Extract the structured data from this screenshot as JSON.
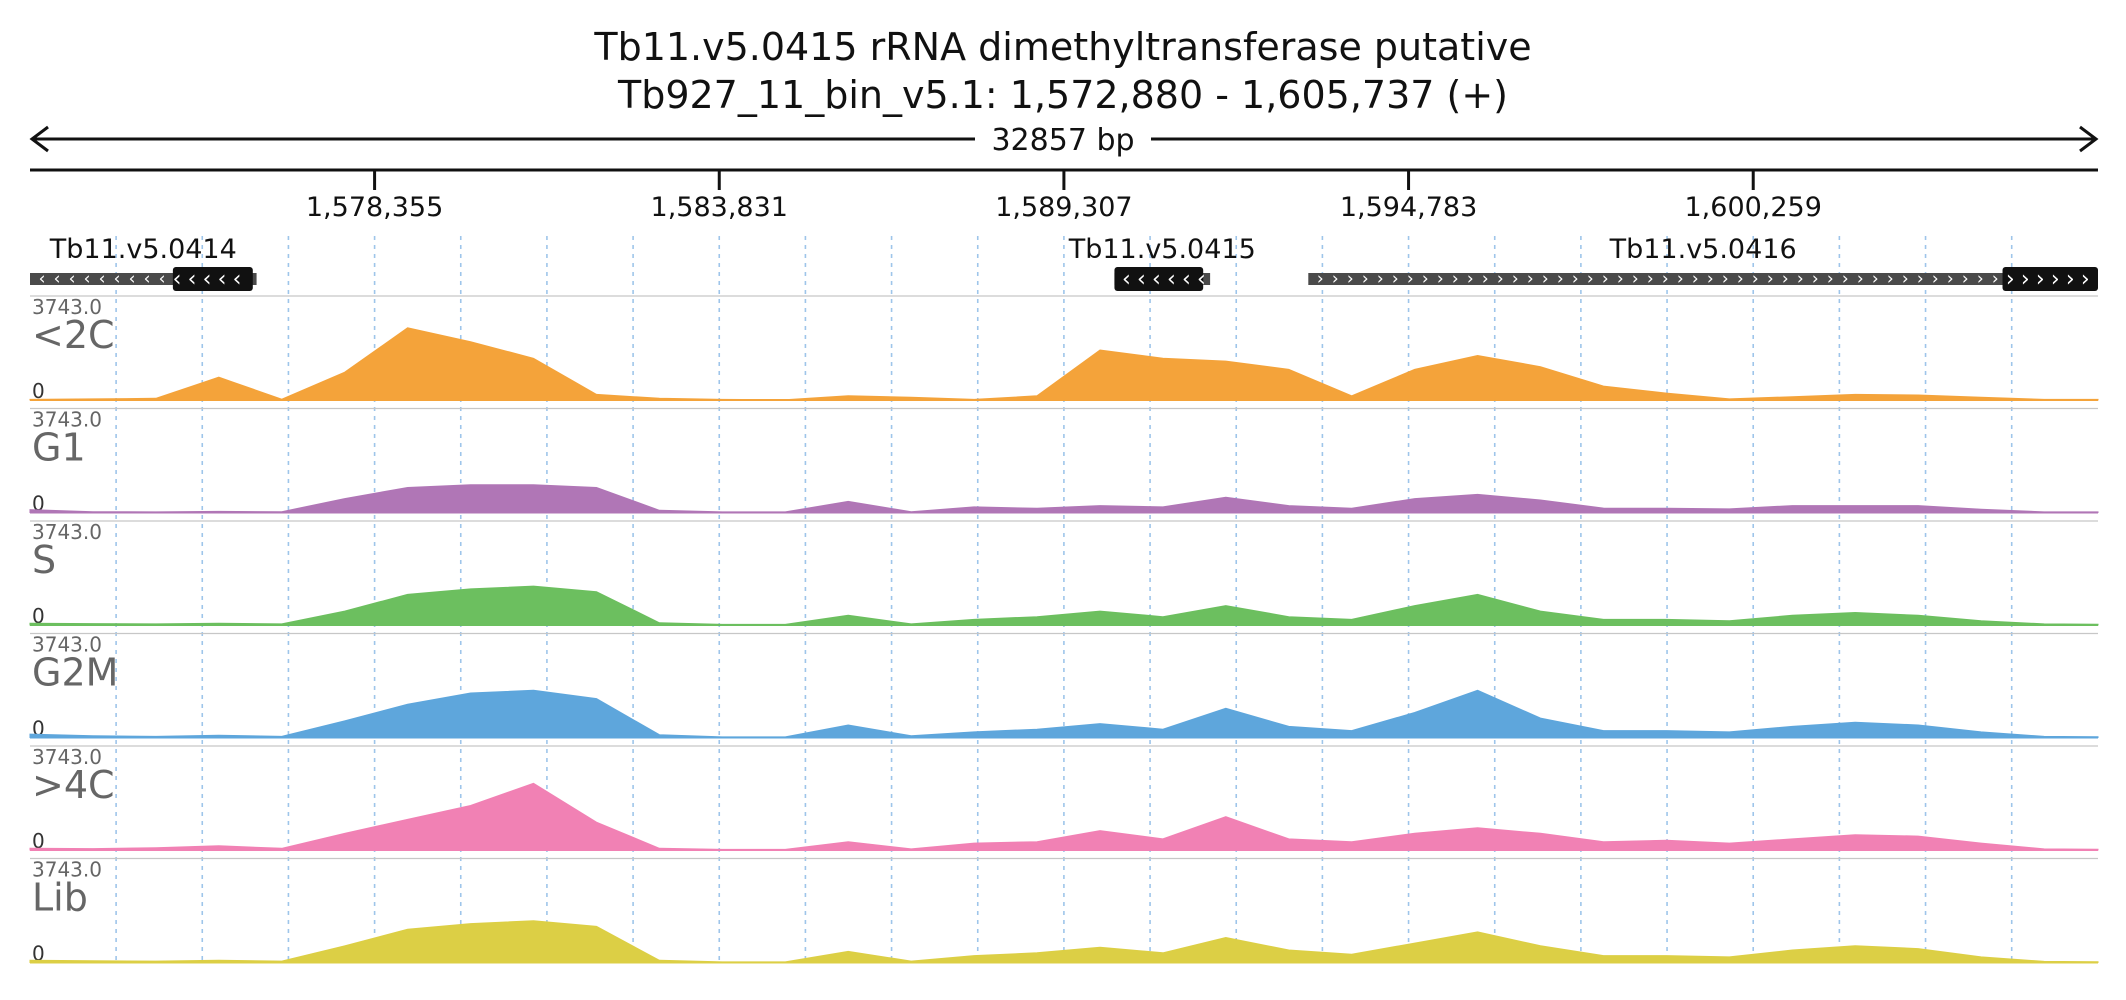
{
  "chart_data": {
    "type": "area",
    "title": "Tb11.v5.0415  rRNA dimethyltransferase  putative",
    "subtitle": "Tb927_11_bin_v5.1: 1,572,880 - 1,605,737 (+)",
    "span_label": "32857 bp",
    "xlim": [
      1572880,
      1605737
    ],
    "ylim": [
      0,
      3743.0
    ],
    "y_max_label": "3743.0",
    "y_min_label": "0",
    "x_ticks": [
      {
        "value": 1578355,
        "label": "1,578,355"
      },
      {
        "value": 1583831,
        "label": "1,583,831"
      },
      {
        "value": 1589307,
        "label": "1,589,307"
      },
      {
        "value": 1594783,
        "label": "1,594,783"
      },
      {
        "value": 1600259,
        "label": "1,600,259"
      }
    ],
    "genes": [
      {
        "name": "Tb11.v5.0414",
        "start": 1572880,
        "end": 1576480,
        "cds_start": 1575150,
        "cds_end": 1576420,
        "strand": "-"
      },
      {
        "name": "Tb11.v5.0415",
        "start": 1590110,
        "end": 1591630,
        "cds_start": 1590110,
        "cds_end": 1591520,
        "strand": "-"
      },
      {
        "name": "Tb11.v5.0416",
        "start": 1593190,
        "end": 1605737,
        "cds_start": 1604220,
        "cds_end": 1605737,
        "strand": "+"
      }
    ],
    "x": [
      1572880,
      1573880,
      1574880,
      1575880,
      1576880,
      1577880,
      1578880,
      1579880,
      1580880,
      1581880,
      1582880,
      1583880,
      1584880,
      1585880,
      1586880,
      1587880,
      1588880,
      1589880,
      1590880,
      1591880,
      1592880,
      1593880,
      1594880,
      1595880,
      1596880,
      1597880,
      1598880,
      1599880,
      1600880,
      1601880,
      1602880,
      1603880,
      1604880,
      1605737
    ],
    "series": [
      {
        "name": "<2C",
        "color": "#f4a33a",
        "values": [
          20,
          40,
          60,
          820,
          30,
          1000,
          2600,
          2100,
          1500,
          200,
          60,
          20,
          10,
          150,
          100,
          20,
          150,
          1800,
          1500,
          1400,
          1100,
          150,
          1100,
          1600,
          1200,
          500,
          250,
          40,
          120,
          200,
          180,
          100,
          20,
          20
        ]
      },
      {
        "name": "G1",
        "color": "#b076b6",
        "values": [
          100,
          30,
          20,
          40,
          30,
          500,
          900,
          1000,
          1000,
          900,
          80,
          20,
          20,
          400,
          30,
          200,
          150,
          250,
          200,
          550,
          250,
          150,
          500,
          650,
          450,
          160,
          150,
          130,
          250,
          250,
          250,
          120,
          20,
          20
        ]
      },
      {
        "name": "S",
        "color": "#6cbf5f",
        "values": [
          60,
          50,
          40,
          60,
          40,
          500,
          1100,
          1300,
          1400,
          1200,
          80,
          20,
          20,
          350,
          40,
          200,
          300,
          500,
          300,
          700,
          300,
          200,
          700,
          1100,
          500,
          200,
          200,
          150,
          350,
          450,
          350,
          150,
          40,
          30
        ]
      },
      {
        "name": "G2M",
        "color": "#5ea6dc",
        "values": [
          120,
          60,
          40,
          80,
          40,
          600,
          1200,
          1600,
          1700,
          1400,
          100,
          20,
          20,
          450,
          60,
          200,
          300,
          500,
          300,
          1050,
          400,
          250,
          900,
          1700,
          700,
          250,
          250,
          200,
          400,
          550,
          450,
          200,
          40,
          30
        ]
      },
      {
        "name": ">4C",
        "color": "#f181b4",
        "values": [
          60,
          50,
          80,
          150,
          60,
          600,
          1100,
          1600,
          2400,
          1000,
          60,
          20,
          20,
          300,
          40,
          250,
          300,
          700,
          400,
          1200,
          400,
          300,
          600,
          800,
          600,
          300,
          350,
          250,
          400,
          550,
          500,
          250,
          40,
          30
        ]
      },
      {
        "name": "Lib",
        "color": "#dccf45",
        "values": [
          80,
          60,
          50,
          80,
          50,
          600,
          1200,
          1400,
          1500,
          1300,
          80,
          20,
          20,
          400,
          50,
          250,
          350,
          550,
          350,
          900,
          450,
          300,
          700,
          1100,
          600,
          250,
          250,
          200,
          450,
          600,
          500,
          200,
          40,
          30
        ]
      }
    ]
  }
}
